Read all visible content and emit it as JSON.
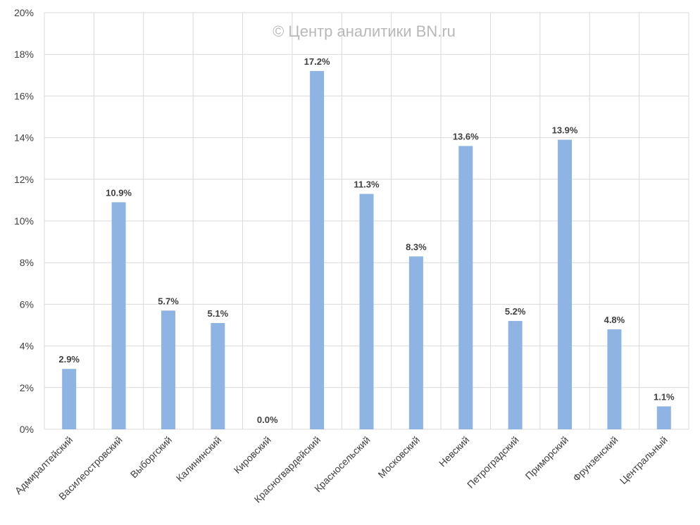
{
  "watermark": "© Центр аналитики BN.ru",
  "colors": {
    "bar": "#8eb4e3",
    "grid": "#d9d9d9",
    "text": "#404040"
  },
  "chart_data": {
    "type": "bar",
    "categories": [
      "Адмиралтейский",
      "Василеостровский",
      "Выборгский",
      "Калининский",
      "Кировский",
      "Красногвардейский",
      "Красносельский",
      "Московский",
      "Невский",
      "Петроградский",
      "Приморский",
      "Фрунзенский",
      "Центральный"
    ],
    "values": [
      2.9,
      10.9,
      5.7,
      5.1,
      0.0,
      17.2,
      11.3,
      8.3,
      13.6,
      5.2,
      13.9,
      4.8,
      1.1
    ],
    "data_labels": [
      "2.9%",
      "10.9%",
      "5.7%",
      "5.1%",
      "0.0%",
      "17.2%",
      "11.3%",
      "8.3%",
      "13.6%",
      "5.2%",
      "13.9%",
      "4.8%",
      "1.1%"
    ],
    "yticks": [
      "0%",
      "2%",
      "4%",
      "6%",
      "8%",
      "10%",
      "12%",
      "14%",
      "16%",
      "18%",
      "20%"
    ],
    "ylim": [
      0,
      20
    ],
    "grid": true,
    "legend": "none"
  }
}
